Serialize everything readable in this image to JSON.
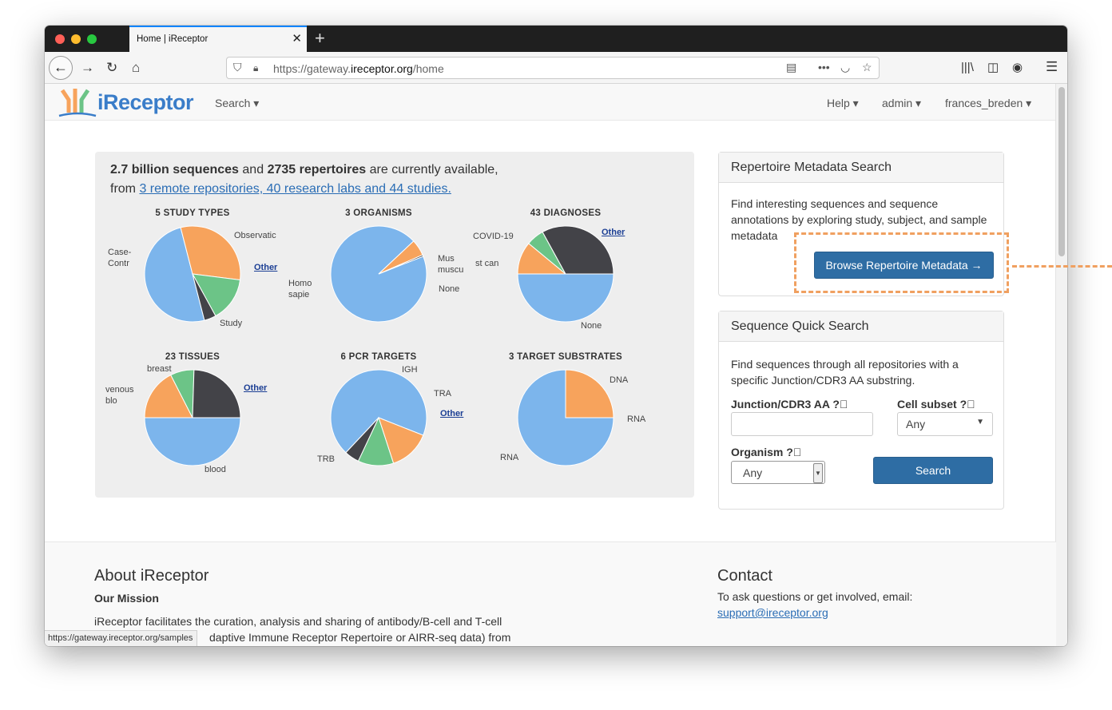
{
  "browser": {
    "tab_title": "Home | iReceptor",
    "url_prefix": "https://gateway.",
    "url_domain": "ireceptor.org",
    "url_path": "/home",
    "status_url": "https://gateway.ireceptor.org/samples"
  },
  "nav": {
    "logo": "iReceptor",
    "search": "Search",
    "help": "Help",
    "admin": "admin",
    "user": "frances_breden"
  },
  "stats": {
    "seq_count": "2.7 billion sequences",
    "and": "and",
    "rep_count": "2735 repertoires",
    "available": "are currently available,",
    "from": "from",
    "link": "3 remote repositories, 40 research labs and 44 studies."
  },
  "pies": {
    "study_types": {
      "title": "5 STUDY TYPES",
      "labels": {
        "observational": "Observatic",
        "case_a": "Case-",
        "case_b": "Contr",
        "other": "Other",
        "study": "Study"
      }
    },
    "organisms": {
      "title": "3 ORGANISMS",
      "labels": {
        "mus_a": "Mus",
        "mus_b": "muscu",
        "homo_a": "Homo",
        "homo_b": "sapie",
        "none": "None"
      }
    },
    "diagnoses": {
      "title": "43 DIAGNOSES",
      "labels": {
        "covid": "COVID-19",
        "other": "Other",
        "stcan": "st can",
        "none": "None"
      }
    },
    "tissues": {
      "title": "23 TISSUES",
      "labels": {
        "breast": "breast",
        "venous_a": "venous",
        "venous_b": "blo",
        "other": "Other",
        "blood": "blood"
      }
    },
    "pcr_targets": {
      "title": "6 PCR TARGETS",
      "labels": {
        "igh": "IGH",
        "tra": "TRA",
        "other": "Other",
        "trb": "TRB"
      }
    },
    "target_substrates": {
      "title": "3 TARGET SUBSTRATES",
      "labels": {
        "dna": "DNA",
        "rna_right": "RNA",
        "rna_left": "RNA"
      }
    }
  },
  "chart_data": [
    {
      "type": "pie",
      "title": "5 STUDY TYPES",
      "categories": [
        "Study",
        "Case-Contr",
        "Observatic",
        "Other"
      ],
      "values": [
        50,
        31,
        15,
        4
      ]
    },
    {
      "type": "pie",
      "title": "3 ORGANISMS",
      "categories": [
        "Homo sapie",
        "Mus muscu",
        "None"
      ],
      "values": [
        94,
        5.5,
        0.5
      ]
    },
    {
      "type": "pie",
      "title": "43 DIAGNOSES",
      "categories": [
        "None",
        "st can",
        "COVID-19",
        "Other"
      ],
      "values": [
        50,
        11,
        6,
        33
      ]
    },
    {
      "type": "pie",
      "title": "23 TISSUES",
      "categories": [
        "blood",
        "venous blo",
        "breast",
        "Other"
      ],
      "values": [
        50,
        17.5,
        8,
        24.5
      ]
    },
    {
      "type": "pie",
      "title": "6 PCR TARGETS",
      "categories": [
        "TRB",
        "IGH",
        "TRA",
        "Other"
      ],
      "values": [
        69,
        14,
        12,
        5
      ]
    },
    {
      "type": "pie",
      "title": "3 TARGET SUBSTRATES",
      "categories": [
        "RNA",
        "DNA"
      ],
      "values": [
        75,
        25
      ]
    }
  ],
  "colors": {
    "blue": "#7cb5ec",
    "orange": "#f7a35c",
    "green": "#6cc487",
    "dark": "#434348",
    "accent_dash": "#f0a060"
  },
  "repertoire_panel": {
    "title": "Repertoire Metadata Search",
    "text1": "Find interesting sequences and sequence",
    "text2": "annotations by exploring study, subject, and sample",
    "text3": "metadata",
    "button": "Browse Repertoire Metadata →"
  },
  "quick_search": {
    "title": "Sequence Quick Search",
    "text1": "Find sequences through all repositories with a",
    "text2": "specific Junction/CDR3 AA substring.",
    "junction_label": "Junction/CDR3 AA",
    "cell_label": "Cell subset",
    "cell_value": "Any",
    "organism_label": "Organism",
    "organism_value": "Any",
    "search_button": "Search"
  },
  "footer": {
    "about_title": "About iReceptor",
    "mission": "Our Mission",
    "about_text1": "iReceptor facilitates the curation, analysis and sharing of antibody/B-cell and T-cell",
    "about_text2": "daptive Immune Receptor Repertoire or AIRR-seq data) from",
    "contact_title": "Contact",
    "contact_text": "To ask questions or get involved, email:",
    "contact_email": "support@ireceptor.org"
  }
}
